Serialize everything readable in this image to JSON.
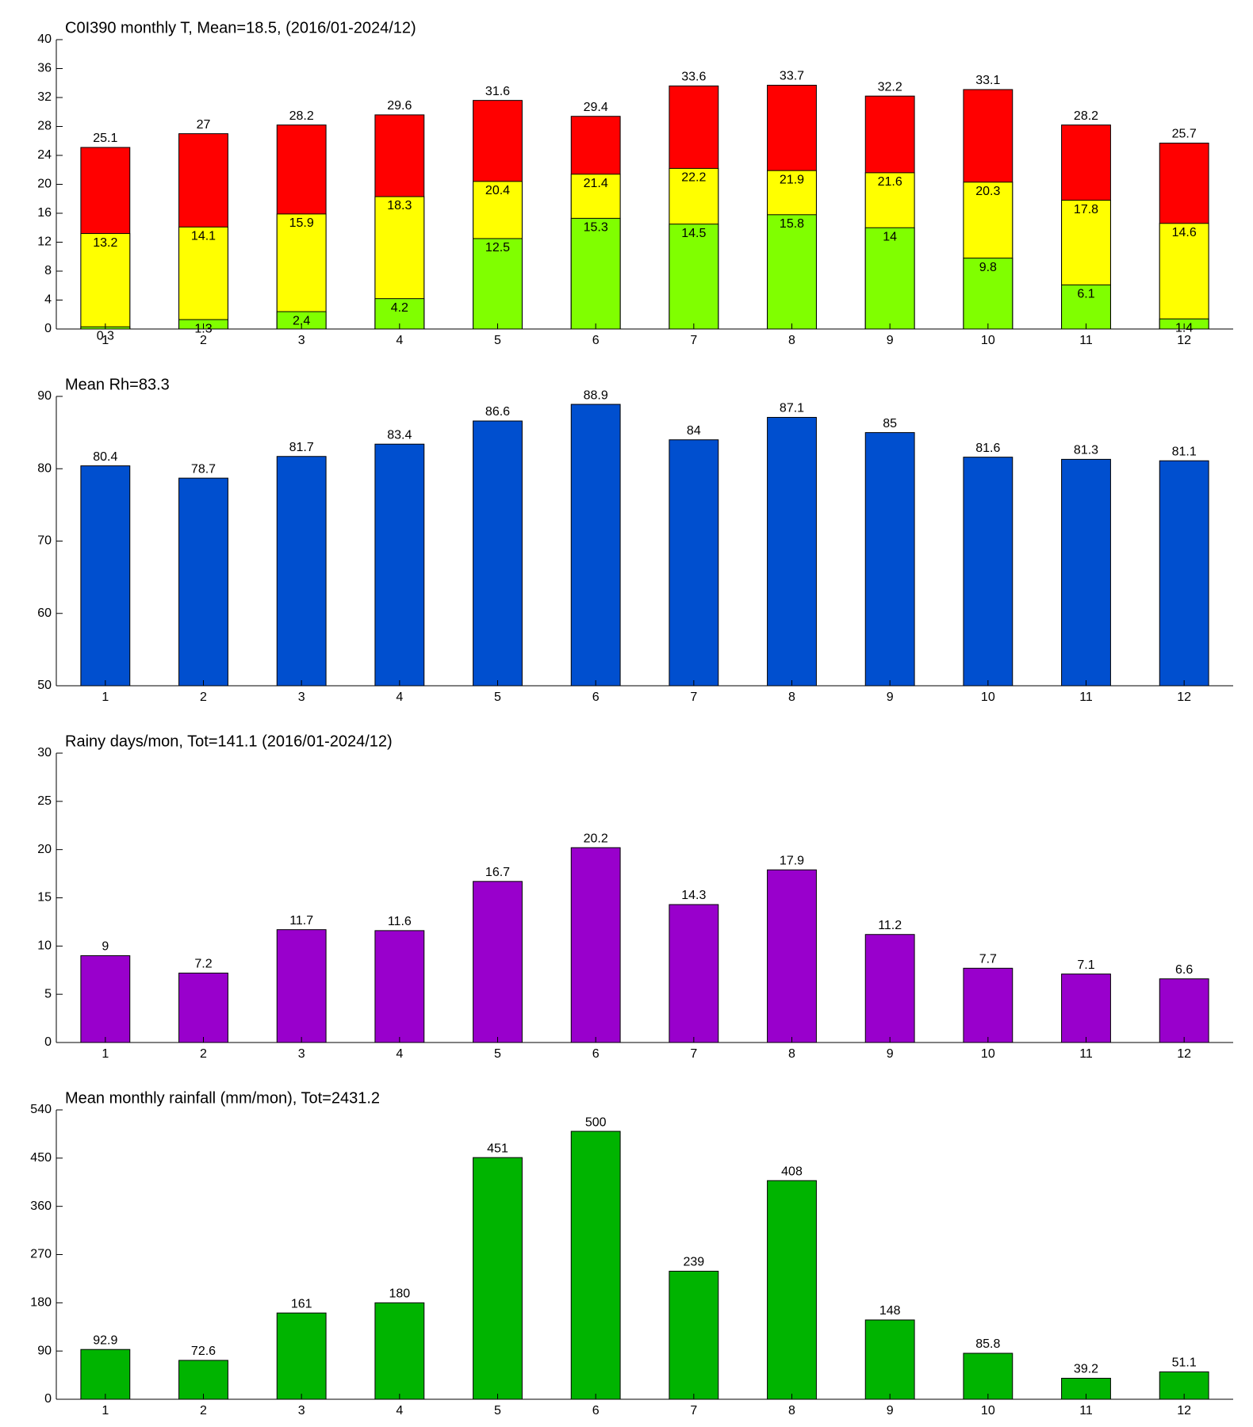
{
  "chart_data": [
    {
      "type": "bar",
      "title": "C0I390 monthly T, Mean=18.5, (2016/01-2024/12)",
      "categories": [
        "1",
        "2",
        "3",
        "4",
        "5",
        "6",
        "7",
        "8",
        "9",
        "10",
        "11",
        "12"
      ],
      "series": [
        {
          "color": "#ff0000",
          "values": [
            25.1,
            27,
            28.2,
            29.6,
            31.6,
            29.4,
            33.6,
            33.7,
            32.2,
            33.1,
            28.2,
            25.7
          ]
        },
        {
          "color": "#ffff00",
          "values": [
            13.2,
            14.1,
            15.9,
            18.3,
            20.4,
            21.4,
            22.2,
            21.9,
            21.6,
            20.3,
            17.8,
            14.6
          ]
        },
        {
          "color": "#80ff00",
          "values": [
            0.3,
            1.3,
            2.4,
            4.2,
            12.5,
            15.3,
            14.5,
            15.8,
            14,
            9.8,
            6.1,
            1.4
          ]
        }
      ],
      "ylim": [
        0,
        40
      ],
      "yticks": [
        0,
        4,
        8,
        12,
        16,
        20,
        24,
        28,
        32,
        36,
        40
      ]
    },
    {
      "type": "bar",
      "title": "Mean Rh=83.3",
      "categories": [
        "1",
        "2",
        "3",
        "4",
        "5",
        "6",
        "7",
        "8",
        "9",
        "10",
        "11",
        "12"
      ],
      "series": [
        {
          "color": "#004fcf",
          "values": [
            80.4,
            78.7,
            81.7,
            83.4,
            86.6,
            88.9,
            84,
            87.1,
            85,
            81.6,
            81.3,
            81.1
          ]
        }
      ],
      "ylim": [
        50,
        90
      ],
      "yticks": [
        50,
        60,
        70,
        80,
        90
      ]
    },
    {
      "type": "bar",
      "title": "Rainy days/mon, Tot=141.1 (2016/01-2024/12)",
      "categories": [
        "1",
        "2",
        "3",
        "4",
        "5",
        "6",
        "7",
        "8",
        "9",
        "10",
        "11",
        "12"
      ],
      "series": [
        {
          "color": "#9900cc",
          "values": [
            9,
            7.2,
            11.7,
            11.6,
            16.7,
            20.2,
            14.3,
            17.9,
            11.2,
            7.7,
            7.1,
            6.6
          ]
        }
      ],
      "ylim": [
        0,
        30
      ],
      "yticks": [
        0,
        5,
        10,
        15,
        20,
        25,
        30
      ]
    },
    {
      "type": "bar",
      "title": "Mean monthly rainfall (mm/mon), Tot=2431.2",
      "categories": [
        "1",
        "2",
        "3",
        "4",
        "5",
        "6",
        "7",
        "8",
        "9",
        "10",
        "11",
        "12"
      ],
      "series": [
        {
          "color": "#00b400",
          "values": [
            92.9,
            72.6,
            161,
            180,
            451,
            500,
            239,
            408,
            148,
            85.8,
            39.2,
            51.1
          ]
        }
      ],
      "ylim": [
        0,
        540
      ],
      "yticks": [
        0,
        90,
        180,
        270,
        360,
        450,
        540
      ]
    }
  ]
}
